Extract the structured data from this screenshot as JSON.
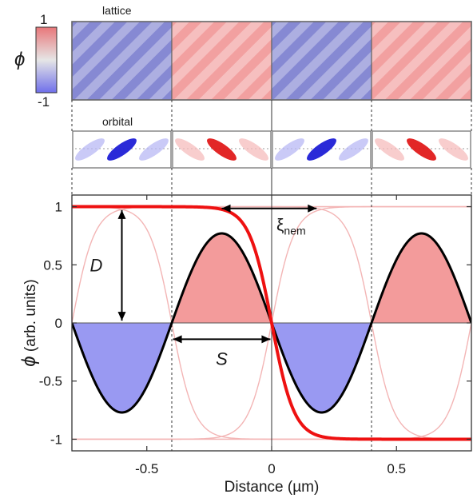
{
  "colorbar": {
    "symbol": "ϕ",
    "max_label": "1",
    "min_label": "-1",
    "colors": {
      "top": "#e8777a",
      "middle": "#e6e6e6",
      "bottom": "#6f6fea"
    }
  },
  "panels": {
    "lattice_label": "lattice",
    "orbital_label": "orbital",
    "lattice_sequence": [
      -1,
      1,
      -1,
      1
    ],
    "orbital_sequence": [
      -1,
      1,
      -1,
      1
    ]
  },
  "annotations": {
    "xi_base": "ξ",
    "xi_sub": "nem",
    "d_label": "D",
    "s_label": "S"
  },
  "chart_data": {
    "type": "line",
    "xlabel": "Distance (µm)",
    "ylabel_symbol": "ϕ",
    "ylabel_units": " (arb. units)",
    "xlim": [
      -0.8,
      0.8
    ],
    "ylim": [
      -1.1,
      1.1
    ],
    "xticks": [
      -0.5,
      0,
      0.5
    ],
    "xtick_labels": [
      "-0.5",
      "0",
      "0.5"
    ],
    "yticks": [
      1,
      0.5,
      0,
      -0.5,
      -1
    ],
    "ytick_labels": [
      "1",
      "0.5",
      "0",
      "-0.5",
      "-1"
    ],
    "domain_walls_x": [
      -0.4,
      0,
      0.4
    ],
    "series": [
      {
        "role": "nematic-profile",
        "color": "#ee1111",
        "x": [
          -0.8,
          -0.4,
          -0.2,
          -0.1,
          0,
          0.1,
          0.2,
          0.4,
          0.8
        ],
        "y": [
          1.0,
          0.98,
          0.85,
          0.6,
          0.0,
          -0.6,
          -0.85,
          -0.98,
          -1.0
        ]
      },
      {
        "role": "oscillation",
        "color": "#000000",
        "x": [
          -0.8,
          -0.6,
          -0.4,
          -0.2,
          0,
          0.2,
          0.4,
          0.6,
          0.8
        ],
        "y": [
          0,
          -0.77,
          0,
          0.77,
          0,
          -0.77,
          0,
          0.77,
          0
        ]
      },
      {
        "role": "envelope-faint",
        "color": "#f3b5b5",
        "x": [
          -0.8,
          0,
          0.8
        ],
        "y": [
          1,
          0,
          -1
        ]
      }
    ],
    "fills": [
      {
        "color": "#9999f2",
        "sign": "negative"
      },
      {
        "color": "#f39b9b",
        "sign": "positive"
      }
    ]
  }
}
